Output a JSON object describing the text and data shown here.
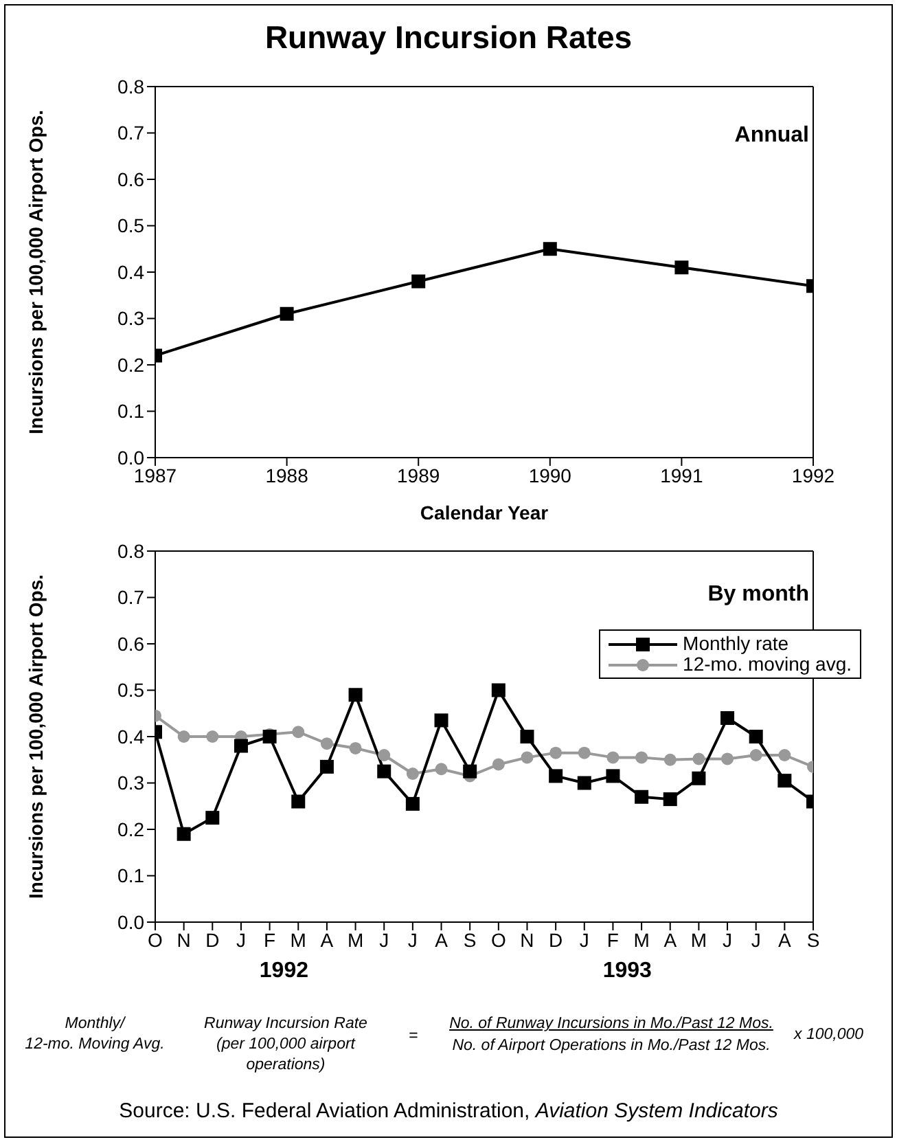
{
  "chart_data": [
    {
      "type": "line",
      "title": "Runway Incursion Rates",
      "xlabel": "Calendar Year",
      "ylabel": "Incursions per 100,000 Airport Ops.",
      "x": [
        1987,
        1988,
        1989,
        1990,
        1991,
        1992
      ],
      "series": [
        {
          "color": "#000000",
          "marker": "square",
          "values": [
            0.22,
            0.31,
            0.38,
            0.45,
            0.41,
            0.37
          ]
        }
      ],
      "xlim": [
        1987,
        1992
      ],
      "xticks": [
        1987,
        1988,
        1989,
        1990,
        1991,
        1992
      ],
      "ylim": [
        0,
        0.8
      ],
      "yticks": [
        {
          "value": 0,
          "label": "0.0"
        },
        {
          "value": 0.1,
          "label": "0.1"
        },
        {
          "value": 0.2,
          "label": "0.2"
        },
        {
          "value": 0.3,
          "label": "0.3"
        },
        {
          "value": 0.4,
          "label": "0.4"
        },
        {
          "value": 0.5,
          "label": "0.5"
        },
        {
          "value": 0.6,
          "label": "0.6"
        },
        {
          "value": 0.7,
          "label": "0.7"
        },
        {
          "value": 0.8,
          "label": "0.8"
        }
      ],
      "grid": false,
      "annotations": [
        "Annual"
      ]
    },
    {
      "type": "line",
      "ylabel": "Incursions per 100,000 Airport Ops.",
      "categories": [
        "O",
        "N",
        "D",
        "J",
        "F",
        "M",
        "A",
        "M",
        "J",
        "J",
        "A",
        "S",
        "O",
        "N",
        "D",
        "J",
        "F",
        "M",
        "A",
        "M",
        "J",
        "J",
        "A",
        "S"
      ],
      "series": [
        {
          "name": "Monthly rate",
          "color": "#000000",
          "marker": "square",
          "values": [
            0.41,
            0.19,
            0.225,
            0.38,
            0.4,
            0.26,
            0.335,
            0.49,
            0.325,
            0.255,
            0.435,
            0.325,
            0.5,
            0.4,
            0.315,
            0.3,
            0.315,
            0.27,
            0.265,
            0.31,
            0.44,
            0.4,
            0.305,
            0.26
          ]
        },
        {
          "name": "12-mo. moving avg.",
          "color": "#999999",
          "marker": "circle",
          "values": [
            0.445,
            0.4,
            0.4,
            0.4,
            0.405,
            0.41,
            0.385,
            0.375,
            0.36,
            0.32,
            0.33,
            0.315,
            0.34,
            0.355,
            0.365,
            0.365,
            0.355,
            0.355,
            0.35,
            0.352,
            0.352,
            0.36,
            0.36,
            0.335
          ]
        }
      ],
      "ylim": [
        0,
        0.8
      ],
      "yticks": [
        {
          "value": 0,
          "label": "0.0"
        },
        {
          "value": 0.1,
          "label": "0.1"
        },
        {
          "value": 0.2,
          "label": "0.2"
        },
        {
          "value": 0.3,
          "label": "0.3"
        },
        {
          "value": 0.4,
          "label": "0.4"
        },
        {
          "value": 0.5,
          "label": "0.5"
        },
        {
          "value": 0.6,
          "label": "0.6"
        },
        {
          "value": 0.7,
          "label": "0.7"
        },
        {
          "value": 0.8,
          "label": "0.8"
        }
      ],
      "grid": false,
      "legend": "top right",
      "annotations": [
        "By month",
        "1992",
        "1993",
        "Monthly/\n12-mo. Moving Avg.",
        "Runway Incursion Rate\n(per 100,000 airport\noperations)",
        "=",
        "No. of Runway Incursions in Mo./Past 12 Mos.",
        "No. of Airport Operations in Mo./Past 12 Mos.",
        "x 100,000",
        "Source: U.S. Federal Aviation Administration, ",
        "Aviation System Indicators"
      ]
    }
  ]
}
